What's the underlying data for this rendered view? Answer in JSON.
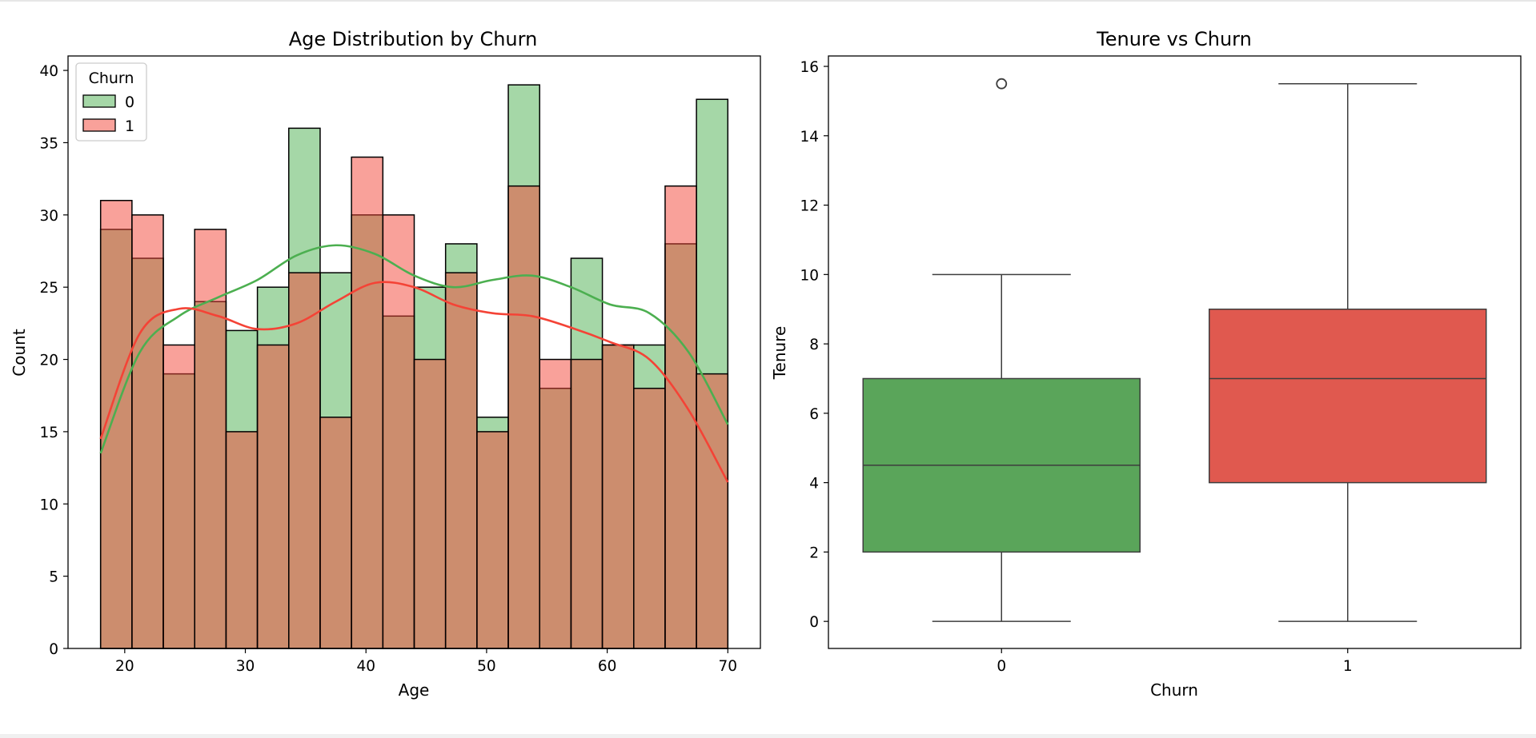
{
  "chart_data": [
    {
      "type": "histogram",
      "title": "Age Distribution by Churn",
      "xlabel": "Age",
      "ylabel": "Count",
      "xlim": [
        15.3,
        72.7
      ],
      "ylim": [
        0,
        41
      ],
      "xticks": [
        20,
        30,
        40,
        50,
        60,
        70
      ],
      "yticks": [
        0,
        5,
        10,
        15,
        20,
        25,
        30,
        35,
        40
      ],
      "bin_start": 18,
      "bin_width": 2.6,
      "legend": {
        "title": "Churn",
        "position": "top-left"
      },
      "series": [
        {
          "name": "0",
          "color": "#4caf50",
          "values": [
            29,
            27,
            19,
            24,
            22,
            25,
            36,
            26,
            30,
            23,
            25,
            28,
            16,
            39,
            18,
            27,
            21,
            21,
            28,
            38
          ],
          "kde": [
            13.5,
            20.5,
            23,
            24.3,
            25.5,
            27.2,
            27.9,
            27.3,
            25.8,
            25,
            25.5,
            25.8,
            25,
            23.8,
            23.2,
            20.5,
            15.5
          ]
        },
        {
          "name": "1",
          "color": "#f44336",
          "values": [
            31,
            30,
            21,
            29,
            15,
            21,
            26,
            16,
            34,
            30,
            20,
            26,
            15,
            32,
            20,
            20,
            21,
            18,
            32,
            19
          ],
          "kde": [
            14.5,
            21.8,
            23.5,
            23,
            22.1,
            22.5,
            24,
            25.3,
            25,
            23.8,
            23.2,
            23,
            22.2,
            21.2,
            20,
            16.5,
            11.5
          ]
        }
      ],
      "kde_x": [
        18,
        21.25,
        24.5,
        27.75,
        31,
        34.25,
        37.5,
        40.75,
        44,
        47.25,
        50.5,
        53.75,
        57,
        60.25,
        63.5,
        66.75,
        70
      ]
    },
    {
      "type": "box",
      "title": "Tenure vs Churn",
      "xlabel": "Churn",
      "ylabel": "Tenure",
      "ylim": [
        -0.78,
        16.3
      ],
      "yticks": [
        0,
        2,
        4,
        6,
        8,
        10,
        12,
        14,
        16
      ],
      "categories": [
        "0",
        "1"
      ],
      "boxes": [
        {
          "category": "0",
          "color": "#5aa55a",
          "min": 0,
          "q1": 2,
          "median": 4.5,
          "q3": 7,
          "max": 10,
          "outliers": [
            15.5
          ]
        },
        {
          "category": "1",
          "color": "#e0594f",
          "min": 0,
          "q1": 4,
          "median": 7,
          "q3": 9,
          "max": 15.5,
          "outliers": []
        }
      ]
    }
  ]
}
